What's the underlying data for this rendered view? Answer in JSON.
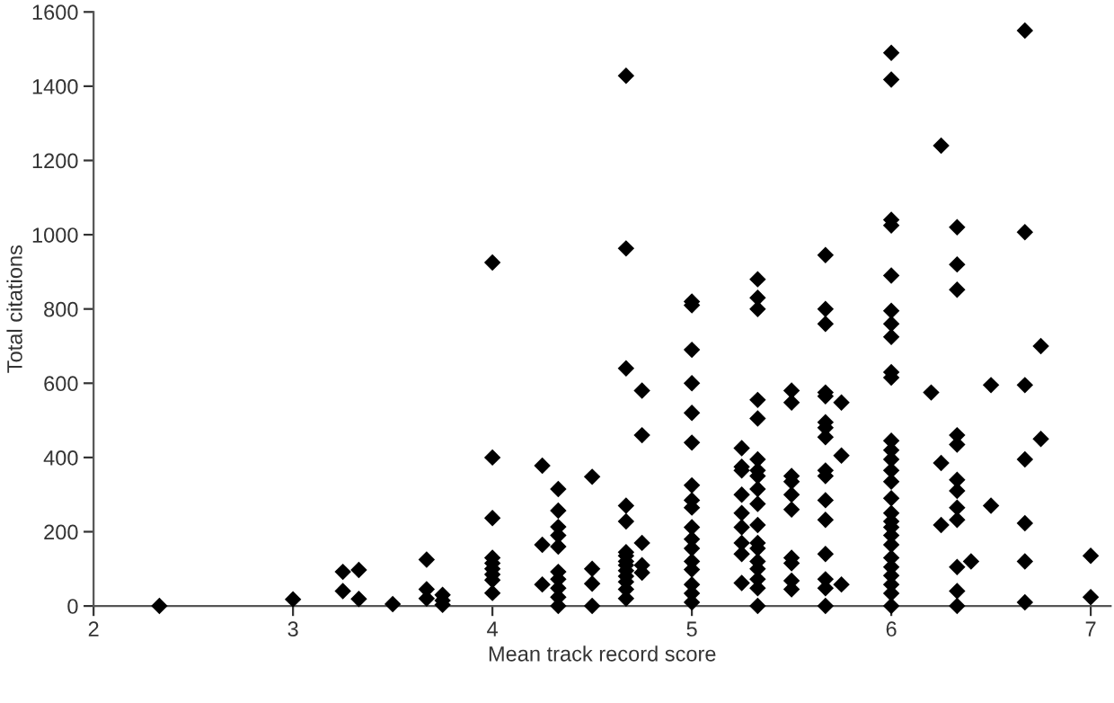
{
  "chart_data": {
    "type": "scatter",
    "xlabel": "Mean track record score",
    "ylabel": "Total citations",
    "xlim": [
      2,
      7.1
    ],
    "xticks": [
      2,
      3,
      4,
      5,
      6,
      7
    ],
    "ylim": [
      0,
      1600
    ],
    "yticks": [
      0,
      200,
      400,
      600,
      800,
      1000,
      1200,
      1400,
      1600
    ],
    "marker": "diamond",
    "series": [
      {
        "color": "#000000",
        "x": [
          2.33,
          3,
          3.25,
          3.25,
          3.33,
          3.33,
          3.5,
          3.67,
          3.67,
          3.67,
          3.75,
          3.75,
          3.75,
          4,
          4,
          4,
          4,
          4,
          4,
          4,
          4,
          4,
          4.25,
          4.25,
          4.25,
          4.33,
          4.33,
          4.33,
          4.33,
          4.33,
          4.33,
          4.33,
          4.33,
          4.33,
          4.33,
          4.5,
          4.5,
          4.5,
          4.5,
          4.67,
          4.67,
          4.67,
          4.67,
          4.67,
          4.67,
          4.67,
          4.67,
          4.67,
          4.67,
          4.67,
          4.67,
          4.67,
          4.67,
          4.75,
          4.75,
          4.75,
          4.75,
          4.75,
          5,
          5,
          5,
          5,
          5,
          5,
          5,
          5,
          5,
          5,
          5,
          5,
          5,
          5,
          5,
          5,
          5,
          5.25,
          5.25,
          5.25,
          5.25,
          5.25,
          5.25,
          5.25,
          5.25,
          5.25,
          5.33,
          5.33,
          5.33,
          5.33,
          5.33,
          5.33,
          5.33,
          5.33,
          5.33,
          5.33,
          5.33,
          5.33,
          5.33,
          5.33,
          5.33,
          5.33,
          5.33,
          5.33,
          5.5,
          5.5,
          5.5,
          5.5,
          5.5,
          5.5,
          5.5,
          5.5,
          5.5,
          5.5,
          5.67,
          5.67,
          5.67,
          5.67,
          5.67,
          5.67,
          5.67,
          5.67,
          5.67,
          5.67,
          5.67,
          5.67,
          5.67,
          5.67,
          5.67,
          5.67,
          5.75,
          5.75,
          5.75,
          6,
          6,
          6,
          6,
          6,
          6,
          6,
          6,
          6,
          6,
          6,
          6,
          6,
          6,
          6,
          6,
          6,
          6,
          6,
          6,
          6,
          6,
          6,
          6,
          6,
          6,
          6,
          6.2,
          6.25,
          6.25,
          6.25,
          6.33,
          6.33,
          6.33,
          6.33,
          6.33,
          6.33,
          6.33,
          6.33,
          6.33,
          6.33,
          6.33,
          6.33,
          6.4,
          6.5,
          6.5,
          6.67,
          6.67,
          6.67,
          6.67,
          6.67,
          6.67,
          6.67,
          6.75,
          6.75,
          7,
          7
        ],
        "values": [
          0,
          18,
          92,
          40,
          97,
          19,
          5,
          125,
          45,
          20,
          30,
          15,
          3,
          925,
          400,
          237,
          130,
          115,
          100,
          85,
          70,
          35,
          378,
          165,
          58,
          315,
          257,
          213,
          190,
          160,
          92,
          72,
          48,
          24,
          0,
          348,
          100,
          60,
          0,
          1428,
          963,
          640,
          270,
          228,
          145,
          135,
          120,
          110,
          95,
          80,
          65,
          45,
          20,
          580,
          460,
          170,
          110,
          90,
          820,
          810,
          690,
          600,
          520,
          440,
          325,
          285,
          265,
          212,
          180,
          155,
          120,
          98,
          58,
          34,
          10,
          425,
          375,
          365,
          300,
          250,
          212,
          170,
          140,
          62,
          880,
          830,
          800,
          555,
          505,
          395,
          365,
          350,
          315,
          275,
          218,
          170,
          155,
          120,
          100,
          72,
          48,
          0,
          580,
          548,
          350,
          335,
          300,
          260,
          130,
          115,
          68,
          45,
          945,
          800,
          760,
          575,
          565,
          495,
          480,
          455,
          365,
          350,
          285,
          232,
          140,
          72,
          48,
          0,
          548,
          405,
          58,
          1490,
          1418,
          1040,
          1025,
          890,
          795,
          760,
          725,
          630,
          615,
          445,
          420,
          395,
          365,
          335,
          290,
          250,
          228,
          212,
          190,
          165,
          130,
          105,
          82,
          58,
          34,
          0,
          575,
          1240,
          385,
          218,
          1020,
          920,
          852,
          460,
          435,
          340,
          310,
          265,
          232,
          105,
          40,
          0,
          120,
          595,
          270,
          1550,
          1007,
          595,
          395,
          223,
          120,
          10,
          700,
          450,
          135,
          24
        ]
      }
    ]
  }
}
